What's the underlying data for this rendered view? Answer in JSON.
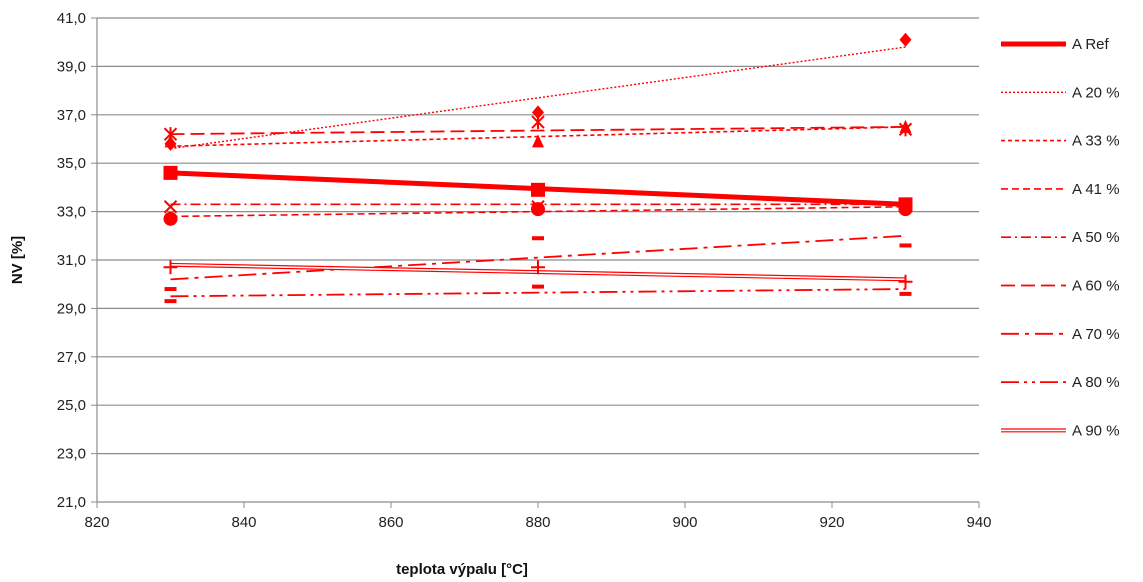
{
  "chart_data": {
    "type": "scatter",
    "xlabel": "teplota výpalu [°C]",
    "ylabel": "NV [%]",
    "xlim": [
      820,
      940
    ],
    "ylim": [
      21,
      41
    ],
    "xticks": [
      "820",
      "840",
      "860",
      "880",
      "900",
      "920",
      "940"
    ],
    "yticks": [
      "21,0",
      "23,0",
      "25,0",
      "27,0",
      "29,0",
      "31,0",
      "33,0",
      "35,0",
      "37,0",
      "39,0",
      "41,0"
    ],
    "grid": "horizontal",
    "legend_position": "right",
    "color": "#ff0000",
    "series": [
      {
        "name": "A Ref",
        "marker": "square",
        "x": [
          830,
          880,
          930
        ],
        "y": [
          34.6,
          33.9,
          33.3
        ],
        "trend": [
          34.6,
          33.3
        ]
      },
      {
        "name": "A 20 %",
        "marker": "diamond",
        "x": [
          830,
          880,
          930
        ],
        "y": [
          35.8,
          37.1,
          40.1
        ],
        "trend": [
          35.6,
          39.8
        ]
      },
      {
        "name": "A 33 %",
        "marker": "triangle",
        "x": [
          830,
          880,
          930
        ],
        "y": [
          35.9,
          35.9,
          36.5
        ],
        "trend": [
          35.7,
          36.5
        ]
      },
      {
        "name": "A 41 %",
        "marker": "circle",
        "x": [
          830,
          880,
          930
        ],
        "y": [
          32.7,
          33.1,
          33.1
        ],
        "trend": [
          32.8,
          33.2
        ]
      },
      {
        "name": "A 50 %",
        "marker": "x",
        "x": [
          830,
          880,
          930
        ],
        "y": [
          33.2,
          33.2,
          33.2
        ],
        "trend": [
          33.3,
          33.3
        ]
      },
      {
        "name": "A 60 %",
        "marker": "star",
        "x": [
          830,
          880,
          930
        ],
        "y": [
          36.2,
          36.7,
          36.4
        ],
        "trend": [
          36.2,
          36.5
        ]
      },
      {
        "name": "A 70 %",
        "marker": "dash",
        "x": [
          830,
          880,
          930
        ],
        "y": [
          29.8,
          31.9,
          31.6
        ],
        "trend": [
          30.2,
          32.0
        ]
      },
      {
        "name": "A 80 %",
        "marker": "dash",
        "x": [
          830,
          880,
          930
        ],
        "y": [
          29.3,
          29.9,
          29.6
        ],
        "trend": [
          29.5,
          29.8
        ]
      },
      {
        "name": "A 90 %",
        "marker": "plus",
        "x": [
          830,
          880,
          930
        ],
        "y": [
          30.7,
          30.7,
          30.1
        ],
        "trend": [
          30.8,
          30.2
        ]
      }
    ]
  }
}
